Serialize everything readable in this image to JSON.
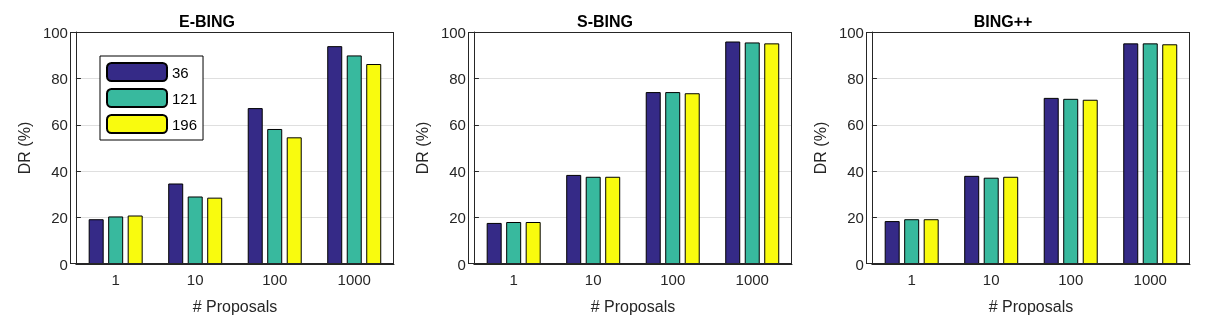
{
  "chart_data": [
    {
      "type": "bar",
      "title": "E-BING",
      "xlabel": "# Proposals",
      "ylabel": "DR (%)",
      "categories": [
        "1",
        "10",
        "100",
        "1000"
      ],
      "ylim": [
        0,
        100
      ],
      "yticks": [
        0,
        20,
        40,
        60,
        80,
        100
      ],
      "grid": "y",
      "legend": "top left",
      "series": [
        {
          "name": "36",
          "color": "#352a87",
          "values": [
            19.3,
            34.7,
            67.2,
            93.9
          ]
        },
        {
          "name": "121",
          "color": "#38b99e",
          "values": [
            20.5,
            29.1,
            58.2,
            89.9
          ]
        },
        {
          "name": "196",
          "color": "#f9fb0e",
          "values": [
            20.9,
            28.6,
            54.6,
            86.2
          ]
        }
      ]
    },
    {
      "type": "bar",
      "title": "S-BING",
      "xlabel": "# Proposals",
      "ylabel": "DR (%)",
      "categories": [
        "1",
        "10",
        "100",
        "1000"
      ],
      "ylim": [
        0,
        100
      ],
      "yticks": [
        0,
        20,
        40,
        60,
        80,
        100
      ],
      "grid": "y",
      "series": [
        {
          "color": "#352a87",
          "values": [
            17.7,
            38.4,
            74.1,
            95.9
          ]
        },
        {
          "color": "#38b99e",
          "values": [
            18.1,
            37.6,
            74.1,
            95.5
          ]
        },
        {
          "color": "#f9fb0e",
          "values": [
            18.1,
            37.6,
            73.6,
            95.1
          ]
        }
      ]
    },
    {
      "type": "bar",
      "title": "BING++",
      "xlabel": "# Proposals",
      "ylabel": "DR (%)",
      "categories": [
        "1",
        "10",
        "100",
        "1000"
      ],
      "ylim": [
        0,
        100
      ],
      "yticks": [
        0,
        20,
        40,
        60,
        80,
        100
      ],
      "grid": "y",
      "series": [
        {
          "color": "#352a87",
          "values": [
            18.5,
            38.0,
            71.6,
            95.1
          ]
        },
        {
          "color": "#38b99e",
          "values": [
            19.3,
            37.2,
            71.2,
            95.1
          ]
        },
        {
          "color": "#f9fb0e",
          "values": [
            19.3,
            37.6,
            70.8,
            94.7
          ]
        }
      ]
    }
  ]
}
